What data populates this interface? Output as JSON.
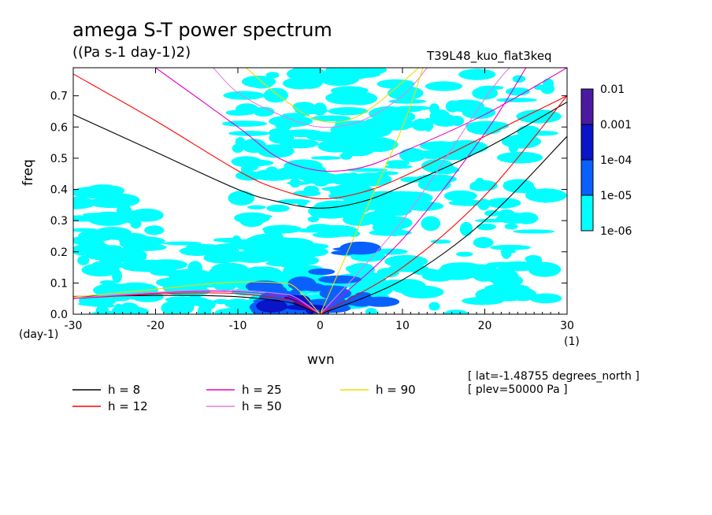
{
  "title": "amega S-T power spectrum",
  "units": "((Pa s-1 day-1)2)",
  "run_name": "T39L48_kuo_flat3keq",
  "info_lines": [
    "[ lat=-1.48755 degrees_north ]",
    "[ plev=50000 Pa ]"
  ],
  "colors": {
    "fill_levels": [
      "#00ffff",
      "#0a60ff",
      "#0a14c8",
      "#4b1aa0"
    ],
    "h_lines": [
      "#000000",
      "#ff0000",
      "#e600c8",
      "#e080e0",
      "#f0d800"
    ]
  },
  "chart_data": {
    "type": "heatmap",
    "title": "amega S-T power spectrum",
    "subtitle": "((Pa s-1 day-1)2)",
    "xlabel": "wvn",
    "ylabel": "freq",
    "x_unit": "(1)",
    "y_unit": "(day-1)",
    "xlim": [
      -30,
      30
    ],
    "ylim": [
      0,
      0.79
    ],
    "xticks": [
      -30,
      -20,
      -10,
      0,
      10,
      20,
      30
    ],
    "xtick_labels": [
      "-30",
      "-20",
      "-10",
      "0",
      "10",
      "20",
      "30"
    ],
    "yticks": [
      0,
      0.1,
      0.2,
      0.3,
      0.4,
      0.5,
      0.6,
      0.7
    ],
    "ytick_labels": [
      "0.0",
      "0.1",
      "0.2",
      "0.3",
      "0.4",
      "0.5",
      "0.6",
      "0.7"
    ],
    "colorbar": {
      "levels": [
        1e-06,
        1e-05,
        0.0001,
        0.001,
        0.01
      ],
      "labels": [
        "1e-06",
        "1e-05",
        "1e-04",
        "0.001",
        "0.01"
      ],
      "colors": [
        "#00ffff",
        "#0a60ff",
        "#0a14c8",
        "#4b1aa0"
      ]
    },
    "field_description_regions": [
      {
        "x": [
          -28,
          0
        ],
        "y": [
          0.0,
          0.25
        ],
        "level": "1e-06"
      },
      {
        "x": [
          -8,
          2
        ],
        "y": [
          0.0,
          0.1
        ],
        "level": "1e-05"
      },
      {
        "x": [
          -10,
          10
        ],
        "y": [
          0.25,
          0.79
        ],
        "level": "1e-06"
      },
      {
        "x": [
          0,
          28
        ],
        "y": [
          0.0,
          0.4
        ],
        "level": "1e-06"
      }
    ],
    "series": [
      {
        "name": "h =  8",
        "equivalent_depth_m": 8,
        "color": "#000000",
        "curves": [
          {
            "kind": "rossby",
            "x": [
              -30,
              -20,
              -15,
              -10,
              -5,
              -3,
              0
            ],
            "y": [
              0.057,
              0.06,
              0.06,
              0.056,
              0.043,
              0.032,
              0.0
            ]
          },
          {
            "kind": "ig1",
            "x": [
              -30,
              -20,
              -10,
              -5,
              0,
              5,
              10,
              20,
              30
            ],
            "y": [
              0.64,
              0.52,
              0.4,
              0.36,
              0.34,
              0.36,
              0.41,
              0.53,
              0.68
            ]
          },
          {
            "kind": "kelvin",
            "x": [
              0,
              10,
              20,
              30
            ],
            "y": [
              0.0,
              0.11,
              0.3,
              0.57
            ]
          }
        ]
      },
      {
        "name": "h = 12",
        "equivalent_depth_m": 12,
        "color": "#ff0000",
        "curves": [
          {
            "kind": "rossby",
            "x": [
              -30,
              -20,
              -15,
              -10,
              -5,
              -3,
              0
            ],
            "y": [
              0.05,
              0.065,
              0.068,
              0.066,
              0.051,
              0.04,
              0.0
            ]
          },
          {
            "kind": "ig1",
            "x": [
              -30,
              -20,
              -10,
              -5,
              0,
              5,
              10,
              20,
              30
            ],
            "y": [
              0.77,
              0.62,
              0.46,
              0.4,
              0.37,
              0.39,
              0.44,
              0.57,
              0.7
            ]
          },
          {
            "kind": "kelvin",
            "x": [
              0,
              10,
              20,
              30
            ],
            "y": [
              0.0,
              0.15,
              0.38,
              0.7
            ]
          }
        ]
      },
      {
        "name": "h = 25",
        "equivalent_depth_m": 25,
        "color": "#e600c8",
        "curves": [
          {
            "kind": "rossby",
            "x": [
              -30,
              -20,
              -15,
              -10,
              -5,
              -3,
              0
            ],
            "y": [
              0.05,
              0.068,
              0.073,
              0.072,
              0.06,
              0.048,
              0.0
            ]
          },
          {
            "kind": "ig1",
            "x": [
              -20,
              -10,
              -5,
              0,
              5,
              10,
              20,
              30
            ],
            "y": [
              0.79,
              0.6,
              0.5,
              0.46,
              0.47,
              0.52,
              0.64,
              0.79
            ]
          },
          {
            "kind": "kelvin",
            "x": [
              0,
              10,
              20,
              25
            ],
            "y": [
              0.0,
              0.24,
              0.58,
              0.79
            ]
          }
        ]
      },
      {
        "name": "h = 50",
        "equivalent_depth_m": 50,
        "color": "#e080e0",
        "curves": [
          {
            "kind": "rossby",
            "x": [
              -30,
              -20,
              -15,
              -10,
              -5,
              -3,
              0
            ],
            "y": [
              0.052,
              0.07,
              0.076,
              0.077,
              0.066,
              0.054,
              0.0
            ]
          },
          {
            "kind": "ig1",
            "x": [
              -13,
              -10,
              -5,
              0,
              5,
              10,
              13
            ],
            "y": [
              0.79,
              0.71,
              0.64,
              0.6,
              0.62,
              0.7,
              0.79
            ]
          },
          {
            "kind": "kelvin",
            "x": [
              0,
              10,
              20,
              23
            ],
            "y": [
              0.0,
              0.3,
              0.69,
              0.79
            ]
          }
        ]
      },
      {
        "name": "h = 90",
        "equivalent_depth_m": 90,
        "color": "#f0d800",
        "curves": [
          {
            "kind": "rossby",
            "x": [
              -30,
              -20,
              -15,
              -10,
              -5,
              -3,
              0
            ],
            "y": [
              0.055,
              0.08,
              0.094,
              0.103,
              0.1,
              0.086,
              0.0
            ]
          },
          {
            "kind": "ig1",
            "x": [
              -9,
              -5,
              0,
              5,
              12
            ],
            "y": [
              0.79,
              0.7,
              0.62,
              0.64,
              0.79
            ]
          },
          {
            "kind": "kelvin",
            "x": [
              0,
              5,
              10,
              12.5
            ],
            "y": [
              0.0,
              0.3,
              0.6,
              0.79
            ]
          }
        ]
      }
    ],
    "legend": {
      "placement": "below",
      "entries": [
        "h =  8",
        "h = 12",
        "h = 25",
        "h = 50",
        "h = 90"
      ]
    },
    "grid": false
  }
}
